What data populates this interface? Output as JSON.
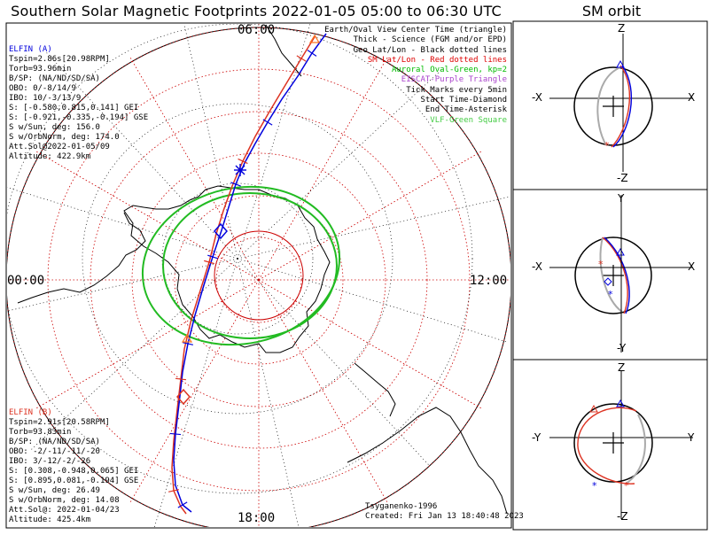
{
  "header": {
    "title": "Southern Solar Magnetic Footprints 2022-01-05 05:00 to 06:30 UTC",
    "sm_title": "SM orbit"
  },
  "elfin_a": {
    "color": "#0000dd",
    "lines": [
      "ELFIN (A)",
      "Tspin=2.86s[20.98RPM]",
      "Torb=93.96min",
      "B/SP: (NA/ND/SD/SA)",
      "OBO: 0/-8/14/9",
      "IBO: 10/-3/13/9",
      "S: [-0.580,0.815,0.141] GEI",
      "S: [-0.921,-0.335,-0.194] GSE",
      "S w/Sun, deg: 156.0",
      "S w/OrbNorm, deg: 174.0",
      "Att.Sol@2022-01-05/09",
      "Altitude: 422.9km"
    ]
  },
  "elfin_b": {
    "color": "#dd3322",
    "lines": [
      "ELFIN (B)",
      "Tspin=2.91s[20.58RPM]",
      "Torb=93.83min",
      "B/SP: (NA/ND/SD/SA)",
      "OBO: -2/-11/-11/-20",
      "IBO: 3/-12/-2/-26",
      "S: [0.308,-0.948,0.065] GEI",
      "S: [0.895,0.081,-0.194] GSE",
      "S w/Sun, deg: 26.49",
      "S w/OrbNorm, deg: 14.08",
      "Att.Sol@: 2022-01-04/23",
      "Altitude: 425.4km"
    ]
  },
  "legend": [
    {
      "text": "Earth/Oval View Center Time (triangle)",
      "color": "#000000"
    },
    {
      "text": "Thick - Science (FGM and/or EPD)",
      "color": "#000000"
    },
    {
      "text": "Geo Lat/Lon - Black dotted lines",
      "color": "#000000"
    },
    {
      "text": "SM Lat/Lon - Red dotted lines",
      "color": "#dd0000"
    },
    {
      "text": "Auroral Oval-Green, kp=2",
      "color": "#00bb00"
    },
    {
      "text": "EISCAT-Purple Triangle",
      "color": "#aa44cc"
    },
    {
      "text": "Tick Marks every 5min",
      "color": "#000000"
    },
    {
      "text": "Start Time-Diamond",
      "color": "#000000"
    },
    {
      "text": "End Time-Asterisk",
      "color": "#000000"
    },
    {
      "text": "VLF-Green Square",
      "color": "#44cc44"
    }
  ],
  "hour_labels": {
    "top": "06:00",
    "left": "00:00",
    "right": "12:00",
    "bottom": "18:00"
  },
  "credits": {
    "author": "Tsyganenko-1996",
    "created": "Created: Fri Jan 13 18:40:48 2023"
  },
  "sm_panels": [
    {
      "top": "Z",
      "bottom": "-Z",
      "left": "-X",
      "right": "X"
    },
    {
      "top": "Y",
      "bottom": "-Y",
      "left": "-X",
      "right": "X"
    },
    {
      "top": "Z",
      "bottom": "-Z",
      "left": "-Y",
      "right": "Y"
    }
  ],
  "chart_data": {
    "type": "polar-map",
    "hemisphere": "south",
    "time_range": [
      "2022-01-05 05:00",
      "2022-01-05 06:30"
    ],
    "auroral_oval_kp": 2,
    "tick_interval_min": 5,
    "series": [
      {
        "name": "ELFIN (A)",
        "color": "#0000dd"
      },
      {
        "name": "ELFIN (B)",
        "color": "#dd3322"
      }
    ]
  }
}
